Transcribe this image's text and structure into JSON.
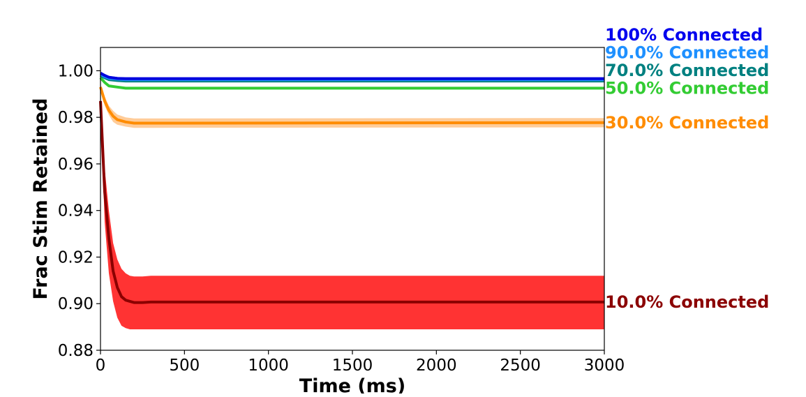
{
  "chart_data": {
    "type": "line",
    "title": "",
    "xlabel": "Time (ms)",
    "ylabel": "Frac Stim Retained",
    "xlim": [
      0,
      3000
    ],
    "ylim": [
      0.88,
      1.01
    ],
    "xticks": [
      {
        "value": 0,
        "label": "0"
      },
      {
        "value": 500,
        "label": "500"
      },
      {
        "value": 1000,
        "label": "1000"
      },
      {
        "value": 1500,
        "label": "1500"
      },
      {
        "value": 2000,
        "label": "2000"
      },
      {
        "value": 2500,
        "label": "2500"
      },
      {
        "value": 3000,
        "label": "3000"
      }
    ],
    "yticks": [
      {
        "value": 0.88,
        "label": "0.88"
      },
      {
        "value": 0.9,
        "label": "0.90"
      },
      {
        "value": 0.92,
        "label": "0.92"
      },
      {
        "value": 0.94,
        "label": "0.94"
      },
      {
        "value": 0.96,
        "label": "0.96"
      },
      {
        "value": 0.98,
        "label": "0.98"
      },
      {
        "value": 1.0,
        "label": "1.00"
      }
    ],
    "grid": false,
    "legend": "labels at right end of each line",
    "series": [
      {
        "name": "10.0% Connected",
        "line_color": "#8b0000",
        "band_color": "#ff3333",
        "label_color": "#8b0000",
        "x": [
          0,
          25,
          50,
          75,
          100,
          125,
          150,
          175,
          200,
          250,
          300,
          3000
        ],
        "y": [
          0.987,
          0.948,
          0.928,
          0.914,
          0.907,
          0.903,
          0.9015,
          0.901,
          0.9005,
          0.9005,
          0.9007,
          0.9007
        ],
        "lower": [
          0.985,
          0.935,
          0.913,
          0.901,
          0.894,
          0.8905,
          0.8895,
          0.889,
          0.889,
          0.889,
          0.889,
          0.889
        ],
        "upper": [
          0.989,
          0.958,
          0.94,
          0.926,
          0.919,
          0.915,
          0.913,
          0.912,
          0.9117,
          0.9117,
          0.912,
          0.912
        ]
      },
      {
        "name": "30.0% Connected",
        "line_color": "#ff8c00",
        "band_color": "#ffcc99",
        "label_color": "#ff8c00",
        "x": [
          0,
          25,
          50,
          75,
          100,
          150,
          200,
          300,
          3000
        ],
        "y": [
          0.993,
          0.987,
          0.983,
          0.9805,
          0.979,
          0.978,
          0.9775,
          0.9775,
          0.9777
        ],
        "lower": [
          0.992,
          0.985,
          0.981,
          0.978,
          0.9768,
          0.976,
          0.9755,
          0.9755,
          0.9757
        ],
        "upper": [
          0.994,
          0.989,
          0.985,
          0.9828,
          0.9812,
          0.98,
          0.9795,
          0.9795,
          0.9797
        ]
      },
      {
        "name": "50.0% Connected",
        "line_color": "#33cc33",
        "band_color": "#a3e6a3",
        "label_color": "#33cc33",
        "x": [
          0,
          25,
          50,
          100,
          150,
          3000
        ],
        "y": [
          0.997,
          0.995,
          0.9935,
          0.993,
          0.9925,
          0.9925
        ],
        "lower": [
          0.9965,
          0.9945,
          0.993,
          0.9925,
          0.992,
          0.992
        ],
        "upper": [
          0.9975,
          0.9955,
          0.994,
          0.9935,
          0.993,
          0.993
        ]
      },
      {
        "name": "70.0% Connected",
        "line_color": "#008080",
        "band_color": "#80c0c0",
        "label_color": "#008080",
        "x": [
          0,
          25,
          50,
          100,
          150,
          3000
        ],
        "y": [
          0.998,
          0.997,
          0.9962,
          0.9958,
          0.9956,
          0.9956
        ],
        "lower": [
          0.9976,
          0.9966,
          0.9958,
          0.9954,
          0.9952,
          0.9952
        ],
        "upper": [
          0.9984,
          0.9974,
          0.9966,
          0.9962,
          0.996,
          0.996
        ]
      },
      {
        "name": "90.0% Connected",
        "line_color": "#1e90ff",
        "band_color": "#9fd0ff",
        "label_color": "#1e90ff",
        "x": [
          0,
          25,
          50,
          100,
          150,
          3000
        ],
        "y": [
          0.9985,
          0.9975,
          0.9968,
          0.9964,
          0.9962,
          0.9962
        ],
        "lower": [
          0.9981,
          0.9971,
          0.9964,
          0.996,
          0.9958,
          0.9958
        ],
        "upper": [
          0.9989,
          0.9979,
          0.9972,
          0.9968,
          0.9966,
          0.9966
        ]
      },
      {
        "name": "100% Connected",
        "line_color": "#0000dd",
        "band_color": "#6b6bff",
        "label_color": "#0000ee",
        "x": [
          0,
          25,
          50,
          100,
          150,
          3000
        ],
        "y": [
          0.999,
          0.998,
          0.9972,
          0.9967,
          0.9966,
          0.9966
        ],
        "lower": [
          0.9984,
          0.9974,
          0.9966,
          0.9961,
          0.996,
          0.996
        ],
        "upper": [
          0.9996,
          0.9986,
          0.9978,
          0.9973,
          0.9972,
          0.9972
        ]
      }
    ]
  }
}
